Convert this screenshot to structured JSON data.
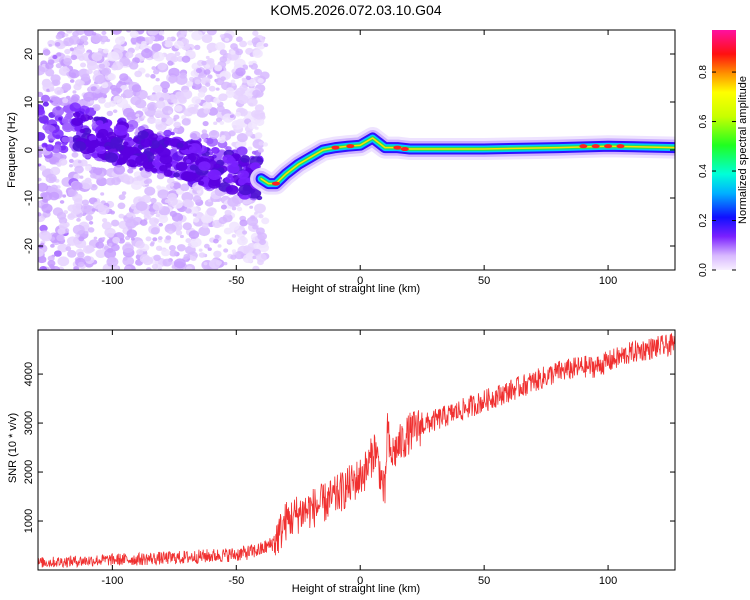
{
  "title": "KOM5.2026.072.03.10.G04",
  "colors": {
    "snr_line": "#f03030",
    "axis": "#000000"
  },
  "chart_data": [
    {
      "type": "heatmap",
      "name": "spectrogram",
      "xlabel": "Height of straight line (km)",
      "ylabel": "Frequency (Hz)",
      "xlim": [
        -130,
        127
      ],
      "ylim": [
        -25,
        25
      ],
      "xticks": [
        -100,
        -50,
        0,
        50,
        100
      ],
      "yticks": [
        -20,
        -10,
        0,
        10,
        20
      ],
      "colorbar": {
        "label": "Normalized spectral amplitude",
        "range": [
          0,
          0.97
        ],
        "ticks": [
          0.0,
          0.2,
          0.4,
          0.6,
          0.8
        ],
        "colormap": "rainbow-violet-to-magenta"
      },
      "ridge": [
        {
          "x": -40,
          "y": -6
        },
        {
          "x": -37,
          "y": -7
        },
        {
          "x": -34,
          "y": -7
        },
        {
          "x": -30,
          "y": -5
        },
        {
          "x": -25,
          "y": -3
        },
        {
          "x": -20,
          "y": -1.5
        },
        {
          "x": -15,
          "y": 0
        },
        {
          "x": -10,
          "y": 0.5
        },
        {
          "x": -5,
          "y": 0.8
        },
        {
          "x": 0,
          "y": 1
        },
        {
          "x": 5,
          "y": 2.5
        },
        {
          "x": 10,
          "y": 0.5
        },
        {
          "x": 15,
          "y": 0.5
        },
        {
          "x": 20,
          "y": 0.2
        },
        {
          "x": 30,
          "y": 0.2
        },
        {
          "x": 50,
          "y": 0.2
        },
        {
          "x": 80,
          "y": 0.5
        },
        {
          "x": 100,
          "y": 0.8
        },
        {
          "x": 127,
          "y": 0.5
        }
      ]
    },
    {
      "type": "line",
      "name": "snr",
      "xlabel": "Height of straight line (km)",
      "ylabel": "SNR (10 * v/v)",
      "xlim": [
        -130,
        127
      ],
      "ylim": [
        0,
        4900
      ],
      "xticks": [
        -100,
        -50,
        0,
        50,
        100
      ],
      "yticks": [
        1000,
        2000,
        3000,
        4000
      ],
      "series": [
        {
          "name": "SNR",
          "x": [
            -130,
            -120,
            -110,
            -100,
            -90,
            -80,
            -70,
            -60,
            -50,
            -45,
            -40,
            -38,
            -35,
            -32,
            -30,
            -28,
            -25,
            -20,
            -15,
            -10,
            -5,
            0,
            3,
            6,
            8,
            10,
            11,
            12,
            15,
            20,
            25,
            30,
            40,
            50,
            60,
            70,
            80,
            90,
            95,
            100,
            105,
            110,
            115,
            120,
            127
          ],
          "y": [
            150,
            170,
            190,
            210,
            220,
            240,
            260,
            290,
            320,
            360,
            420,
            470,
            550,
            800,
            1000,
            1050,
            1150,
            1250,
            1350,
            1500,
            1700,
            1900,
            2100,
            2500,
            2000,
            1500,
            3000,
            2300,
            2500,
            2800,
            2950,
            3050,
            3250,
            3450,
            3650,
            3850,
            4050,
            4150,
            4150,
            4250,
            4350,
            4450,
            4500,
            4550,
            4600
          ]
        }
      ]
    }
  ]
}
